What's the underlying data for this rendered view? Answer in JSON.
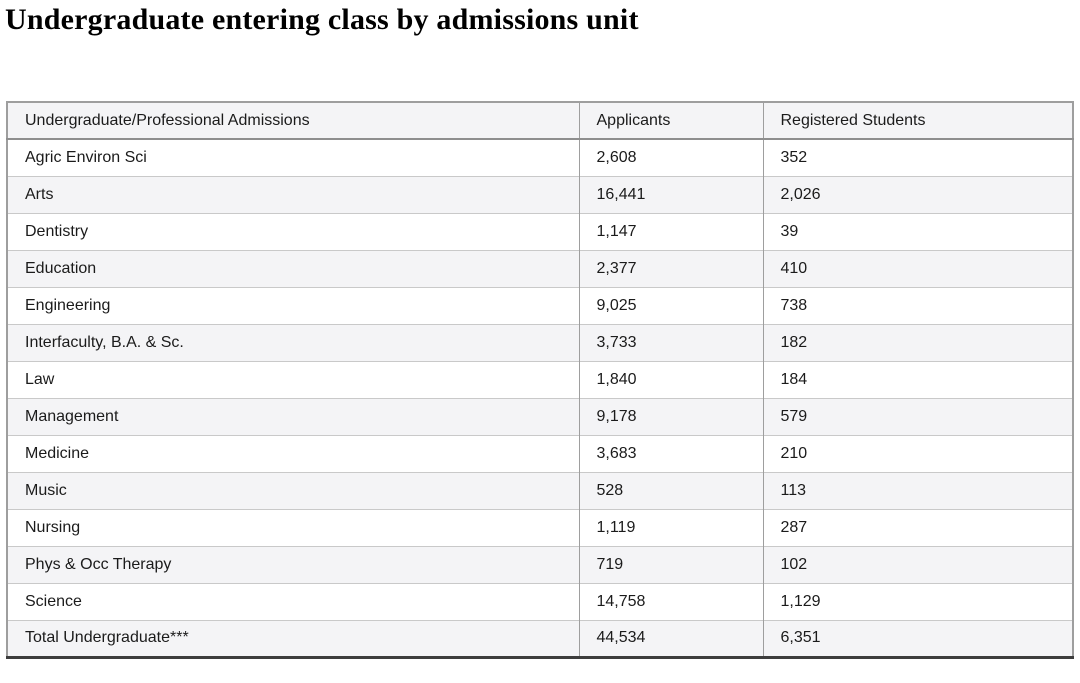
{
  "title": "Undergraduate entering class by admissions unit",
  "table": {
    "headers": [
      "Undergraduate/Professional Admissions",
      "Applicants",
      "Registered Students"
    ],
    "rows": [
      [
        "Agric Environ Sci",
        "2,608",
        "352"
      ],
      [
        "Arts",
        "16,441",
        "2,026"
      ],
      [
        "Dentistry",
        "1,147",
        "39"
      ],
      [
        "Education",
        "2,377",
        "410"
      ],
      [
        "Engineering",
        "9,025",
        "738"
      ],
      [
        "Interfaculty, B.A. & Sc.",
        "3,733",
        "182"
      ],
      [
        "Law",
        "1,840",
        "184"
      ],
      [
        "Management",
        "9,178",
        "579"
      ],
      [
        "Medicine",
        "3,683",
        "210"
      ],
      [
        "Music",
        "528",
        "113"
      ],
      [
        "Nursing",
        "1,119",
        "287"
      ],
      [
        "Phys & Occ Therapy",
        "719",
        "102"
      ],
      [
        "Science",
        "14,758",
        "1,129"
      ],
      [
        "Total Undergraduate***",
        "44,534",
        "6,351"
      ]
    ]
  },
  "chart_data": {
    "type": "table",
    "title": "Undergraduate entering class by admissions unit",
    "columns": [
      "Undergraduate/Professional Admissions",
      "Applicants",
      "Registered Students"
    ],
    "categories": [
      "Agric Environ Sci",
      "Arts",
      "Dentistry",
      "Education",
      "Engineering",
      "Interfaculty, B.A. & Sc.",
      "Law",
      "Management",
      "Medicine",
      "Music",
      "Nursing",
      "Phys & Occ Therapy",
      "Science",
      "Total Undergraduate***"
    ],
    "series": [
      {
        "name": "Applicants",
        "values": [
          2608,
          16441,
          1147,
          2377,
          9025,
          3733,
          1840,
          9178,
          3683,
          528,
          1119,
          719,
          14758,
          44534
        ]
      },
      {
        "name": "Registered Students",
        "values": [
          352,
          2026,
          39,
          410,
          738,
          182,
          184,
          579,
          210,
          113,
          287,
          102,
          1129,
          6351
        ]
      }
    ],
    "legend_position": "none",
    "grid": true
  },
  "colors": {
    "stripe_bg": "#f4f4f6",
    "row_bg": "#ffffff",
    "outer_border": "#9e9e9e",
    "row_separator": "#c9c9c9",
    "header_separator": "#8e8e8e",
    "bottom_border": "#3d3d3d",
    "text": "#1b1b1b"
  }
}
